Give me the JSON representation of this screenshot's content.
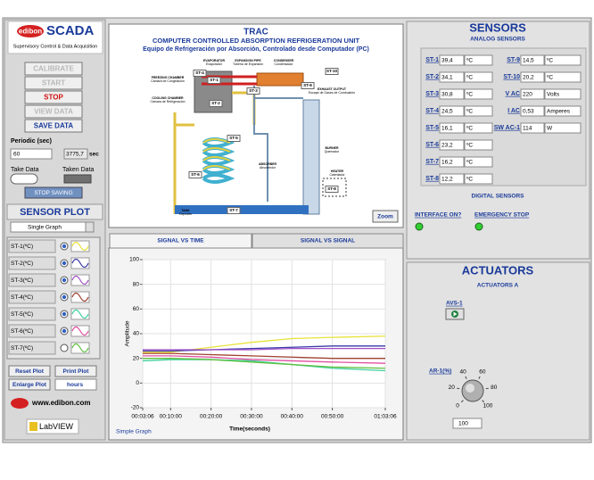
{
  "left_panel": {
    "logo": {
      "brand": "edibon",
      "product": "SCADA",
      "subtitle": "Supervisory Control & Data Acquisition"
    },
    "buttons": [
      "CALIBRATE",
      "START",
      "STOP",
      "VIEW DATA",
      "SAVE DATA"
    ],
    "periodic": {
      "label": "Periodic (sec)",
      "value": "60",
      "elapsed": "3775,7",
      "unit": "sec"
    },
    "take_data": "Take Data",
    "taken_data": "Taken Data",
    "stop_saving": "STOP SAVING",
    "sensor_plot": {
      "title": "SENSOR PLOT",
      "mode": "Single Graph"
    },
    "plot_buttons": [
      "Reset Plot",
      "Print Plot",
      "Enlarge Plot"
    ],
    "time_unit": "hours",
    "website": "www.edibon.com",
    "labview": "LabVIEW"
  },
  "diagram": {
    "code": "TRAC",
    "title": "COMPUTER CONTROLLED ABSORPTION REFRIGERATION UNIT",
    "subtitle": "Equipo de Refrigeración por Absorción, Controlado desde Computador (PC)",
    "components": [
      {
        "name": "EVAPORATOR",
        "name_es": "Evaporador"
      },
      {
        "name": "EXPANSION PIPE",
        "name_es": "Tubería de Expansión"
      },
      {
        "name": "CONDENSER",
        "name_es": "Condensador"
      },
      {
        "name": "FREEZING CHAMBER",
        "name_es": "Cámara de Congelación"
      },
      {
        "name": "COOLING CHAMBER",
        "name_es": "Cámara de Refrigeración"
      },
      {
        "name": "EXHAUST OUTPUT",
        "name_es": "Escape de Gases de Combustión"
      },
      {
        "name": "ABSORBER",
        "name_es": "Absorbedor"
      },
      {
        "name": "BURNER",
        "name_es": "Quemador"
      },
      {
        "name": "HEATER",
        "name_es": "Calentador"
      },
      {
        "name": "TANK",
        "name_es": "Depósito"
      }
    ],
    "sensor_tags": [
      "ST-1",
      "ST-2",
      "ST-3",
      "ST-4",
      "ST-5",
      "ST-6",
      "ST-7",
      "ST-8",
      "ST-9",
      "ST-10"
    ],
    "zoom": "Zoom"
  },
  "tabs": [
    "SIGNAL VS TIME",
    "SIGNAL VS SIGNAL"
  ],
  "chart_data": {
    "type": "line",
    "y_label": "Amplitude",
    "x_label": "Time(seconds)",
    "graph_mode": "Simple Graph",
    "x": [
      186,
      600,
      1200,
      1800,
      2400,
      3000,
      3786
    ],
    "xlim": [
      186,
      3786
    ],
    "xticks": [
      {
        "value": 186,
        "label": "00:03:06"
      },
      {
        "value": 600,
        "label": "00:10:00"
      },
      {
        "value": 1200,
        "label": "00:20:00"
      },
      {
        "value": 1800,
        "label": "00:30:00"
      },
      {
        "value": 2400,
        "label": "00:40:00"
      },
      {
        "value": 3000,
        "label": "00:50:00"
      },
      {
        "value": 3786,
        "label": "01:03:06"
      }
    ],
    "ylim": [
      -20,
      100
    ],
    "yticks": [
      -20,
      0,
      20,
      40,
      60,
      80,
      100
    ],
    "grid": true,
    "series": [
      {
        "name": "ST-1(ºC)",
        "color": "#e8e23a",
        "values": [
          25,
          25,
          29,
          33,
          36,
          37,
          38
        ]
      },
      {
        "name": "ST-2(ºC)",
        "color": "#3a3aa8",
        "values": [
          26,
          26,
          27,
          28,
          29,
          30,
          30
        ]
      },
      {
        "name": "ST-3(ºC)",
        "color": "#a050c8",
        "values": [
          27,
          27,
          27,
          27,
          28,
          28,
          28
        ]
      },
      {
        "name": "ST-4(ºC)",
        "color": "#a04030",
        "values": [
          24,
          24,
          23,
          22,
          21,
          20,
          20
        ]
      },
      {
        "name": "ST-5(ºC)",
        "color": "#40d0a0",
        "values": [
          18,
          19,
          19,
          18,
          15,
          12,
          10
        ]
      },
      {
        "name": "ST-6(ºC)",
        "color": "#e050a0",
        "values": [
          22,
          22,
          21,
          19,
          18,
          17,
          16
        ]
      },
      {
        "name": "ST-7(ºC)",
        "color": "#60c040",
        "values": [
          20,
          20,
          19,
          17,
          15,
          13,
          12
        ]
      }
    ]
  },
  "sensors": {
    "title": "SENSORS",
    "analog_title": "ANALOG SENSORS",
    "analog_left": [
      {
        "label": "ST-1",
        "value": "39,4",
        "unit": "ºC"
      },
      {
        "label": "ST-2",
        "value": "34,1",
        "unit": "ºC"
      },
      {
        "label": "ST-3",
        "value": "30,8",
        "unit": "ºC"
      },
      {
        "label": "ST-4",
        "value": "24,5",
        "unit": "ºC"
      },
      {
        "label": "ST-5",
        "value": "16,1",
        "unit": "ºC"
      },
      {
        "label": "ST-6",
        "value": "23,2",
        "unit": "ºC"
      },
      {
        "label": "ST-7",
        "value": "16,2",
        "unit": "ºC"
      },
      {
        "label": "ST-8",
        "value": "12,2",
        "unit": "ºC"
      }
    ],
    "analog_right": [
      {
        "label": "ST-9",
        "value": "14,5",
        "unit": "ºC"
      },
      {
        "label": "ST-10",
        "value": "20,2",
        "unit": "ºC"
      },
      {
        "label": "V AC",
        "value": "220",
        "unit": "Volts"
      },
      {
        "label": "I AC",
        "value": "0,53",
        "unit": "Amperes"
      },
      {
        "label": "SW AC-1",
        "value": "114",
        "unit": "W"
      }
    ],
    "digital_title": "DIGITAL SENSORS",
    "digital": [
      "INTERFACE ON?",
      "EMERGENCY STOP"
    ]
  },
  "actuators": {
    "title": "ACTUATORS",
    "group": "ACTUATORS A",
    "valve": "AVS-1",
    "knob_label": "AR-1(%)",
    "knob_ticks": [
      0,
      20,
      40,
      60,
      80,
      100
    ],
    "knob_value": "100"
  }
}
